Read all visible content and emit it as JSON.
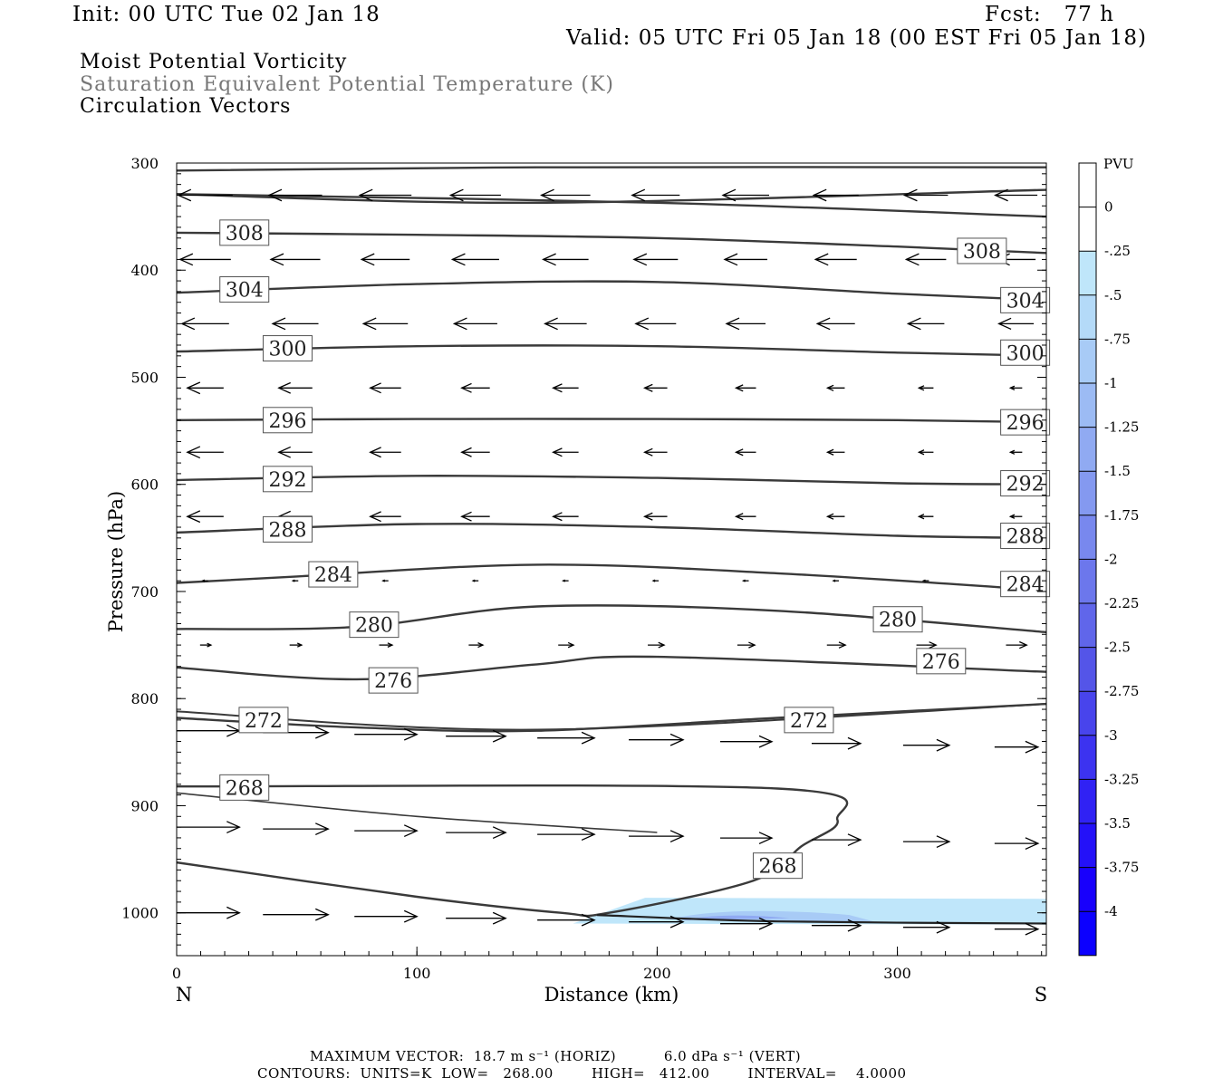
{
  "header": {
    "init": "Init: 00 UTC Tue 02 Jan 18",
    "fcst": "Fcst:   77 h",
    "valid": "Valid: 05 UTC Fri 05 Jan 18 (00 EST Fri 05 Jan 18)"
  },
  "legend": {
    "field1": "Moist Potential Vorticity",
    "field2": "Saturation Equivalent Potential Temperature (K)",
    "field3": "Circulation Vectors",
    "field2_color": "#777777"
  },
  "footer": {
    "max_vector": "MAXIMUM VECTOR:  18.7 m s⁻¹ (HORIZ)          6.0 dPa s⁻¹ (VERT)",
    "contours": "CONTOURS:  UNITS=K  LOW=   268.00        HIGH=   412.00        INTERVAL=    4.0000"
  },
  "colorbar": {
    "unit": "PVU",
    "labels": [
      "0",
      "-.25",
      "-.5",
      "-.75",
      "-1",
      "-1.25",
      "-1.5",
      "-1.75",
      "-2",
      "-2.25",
      "-2.5",
      "-2.75",
      "-3",
      "-3.25",
      "-3.5",
      "-3.75",
      "-4"
    ],
    "colors": [
      "#ffffff",
      "#ffffff",
      "#bfe6fa",
      "#b4daf8",
      "#a8cbf6",
      "#9cbbf4",
      "#90aaf2",
      "#8499f0",
      "#7888ee",
      "#6c77ec",
      "#6066ea",
      "#5455e8",
      "#4844ec",
      "#3c33f0",
      "#3022f4",
      "#2411f8",
      "#1800fc",
      "#0c00ff"
    ]
  },
  "chart_data": {
    "type": "cross-section",
    "xlabel": "Distance (km)",
    "ylabel": "Pressure (hPa)",
    "xlim": [
      0,
      362
    ],
    "ylim": [
      300,
      1040
    ],
    "y_inverted": true,
    "x_ticks": [
      0,
      100,
      200,
      300
    ],
    "y_ticks": [
      300,
      400,
      500,
      600,
      700,
      800,
      900,
      1000
    ],
    "x_end_labels": {
      "left": "N",
      "right": "S"
    },
    "theta_es_contours": [
      {
        "label": "308",
        "points": [
          [
            0,
            365
          ],
          [
            100,
            367
          ],
          [
            200,
            370
          ],
          [
            300,
            378
          ],
          [
            362,
            384
          ]
        ],
        "labels_at": [
          [
            18,
            365
          ],
          [
            325,
            382
          ]
        ]
      },
      {
        "label": "304",
        "points": [
          [
            0,
            421
          ],
          [
            100,
            413
          ],
          [
            200,
            411
          ],
          [
            300,
            422
          ],
          [
            362,
            428
          ]
        ],
        "labels_at": [
          [
            18,
            418
          ],
          [
            343,
            428
          ]
        ]
      },
      {
        "label": "300",
        "points": [
          [
            0,
            476
          ],
          [
            100,
            471
          ],
          [
            200,
            471
          ],
          [
            300,
            477
          ],
          [
            362,
            480
          ]
        ],
        "labels_at": [
          [
            36,
            473
          ],
          [
            343,
            477
          ]
        ]
      },
      {
        "label": "296",
        "points": [
          [
            0,
            540
          ],
          [
            100,
            539
          ],
          [
            200,
            539
          ],
          [
            300,
            540
          ],
          [
            362,
            542
          ]
        ],
        "labels_at": [
          [
            36,
            540
          ],
          [
            343,
            542
          ]
        ]
      },
      {
        "label": "292",
        "points": [
          [
            0,
            596
          ],
          [
            100,
            592
          ],
          [
            200,
            594
          ],
          [
            300,
            599
          ],
          [
            362,
            600
          ]
        ],
        "labels_at": [
          [
            36,
            595
          ],
          [
            343,
            599
          ]
        ]
      },
      {
        "label": "288",
        "points": [
          [
            0,
            645
          ],
          [
            100,
            637
          ],
          [
            200,
            640
          ],
          [
            300,
            648
          ],
          [
            362,
            650
          ]
        ],
        "labels_at": [
          [
            36,
            642
          ],
          [
            343,
            648
          ]
        ]
      },
      {
        "label": "284",
        "points": [
          [
            0,
            692
          ],
          [
            50,
            686
          ],
          [
            150,
            675
          ],
          [
            250,
            683
          ],
          [
            362,
            699
          ]
        ],
        "labels_at": [
          [
            55,
            684
          ],
          [
            343,
            693
          ]
        ]
      },
      {
        "label": "280",
        "points": [
          [
            0,
            735
          ],
          [
            75,
            733
          ],
          [
            150,
            714
          ],
          [
            250,
            718
          ],
          [
            362,
            738
          ]
        ],
        "labels_at": [
          [
            72,
            731
          ],
          [
            290,
            726
          ]
        ]
      },
      {
        "label": "276",
        "points": [
          [
            0,
            771
          ],
          [
            75,
            782
          ],
          [
            150,
            768
          ],
          [
            200,
            761
          ],
          [
            362,
            775
          ]
        ],
        "labels_at": [
          [
            80,
            783
          ],
          [
            308,
            765
          ]
        ]
      },
      {
        "label": "272",
        "points": [
          [
            0,
            818
          ],
          [
            75,
            827
          ],
          [
            150,
            830
          ],
          [
            250,
            818
          ],
          [
            362,
            805
          ]
        ],
        "labels_at": [
          [
            26,
            820
          ],
          [
            253,
            820
          ]
        ]
      },
      {
        "label": "268",
        "points": [
          [
            0,
            882
          ],
          [
            250,
            884
          ],
          [
            275,
            913
          ],
          [
            260,
            938
          ],
          [
            240,
            970
          ],
          [
            180,
            1000
          ],
          [
            160,
            1000
          ],
          [
            100,
            985
          ],
          [
            0,
            953
          ]
        ],
        "labels_at": [
          [
            18,
            883
          ],
          [
            240,
            956
          ]
        ]
      }
    ],
    "mpv_shading": {
      "region_km": [
        165,
        362
      ],
      "region_hPa": [
        988,
        1010
      ],
      "min_pvu": -1.0
    },
    "vector_rows_hPa": [
      330,
      390,
      450,
      510,
      570,
      630,
      690,
      750,
      830,
      920,
      1000
    ],
    "max_vector_horiz_m_s": 18.7,
    "max_vector_vert_dPa_s": 6.0
  }
}
